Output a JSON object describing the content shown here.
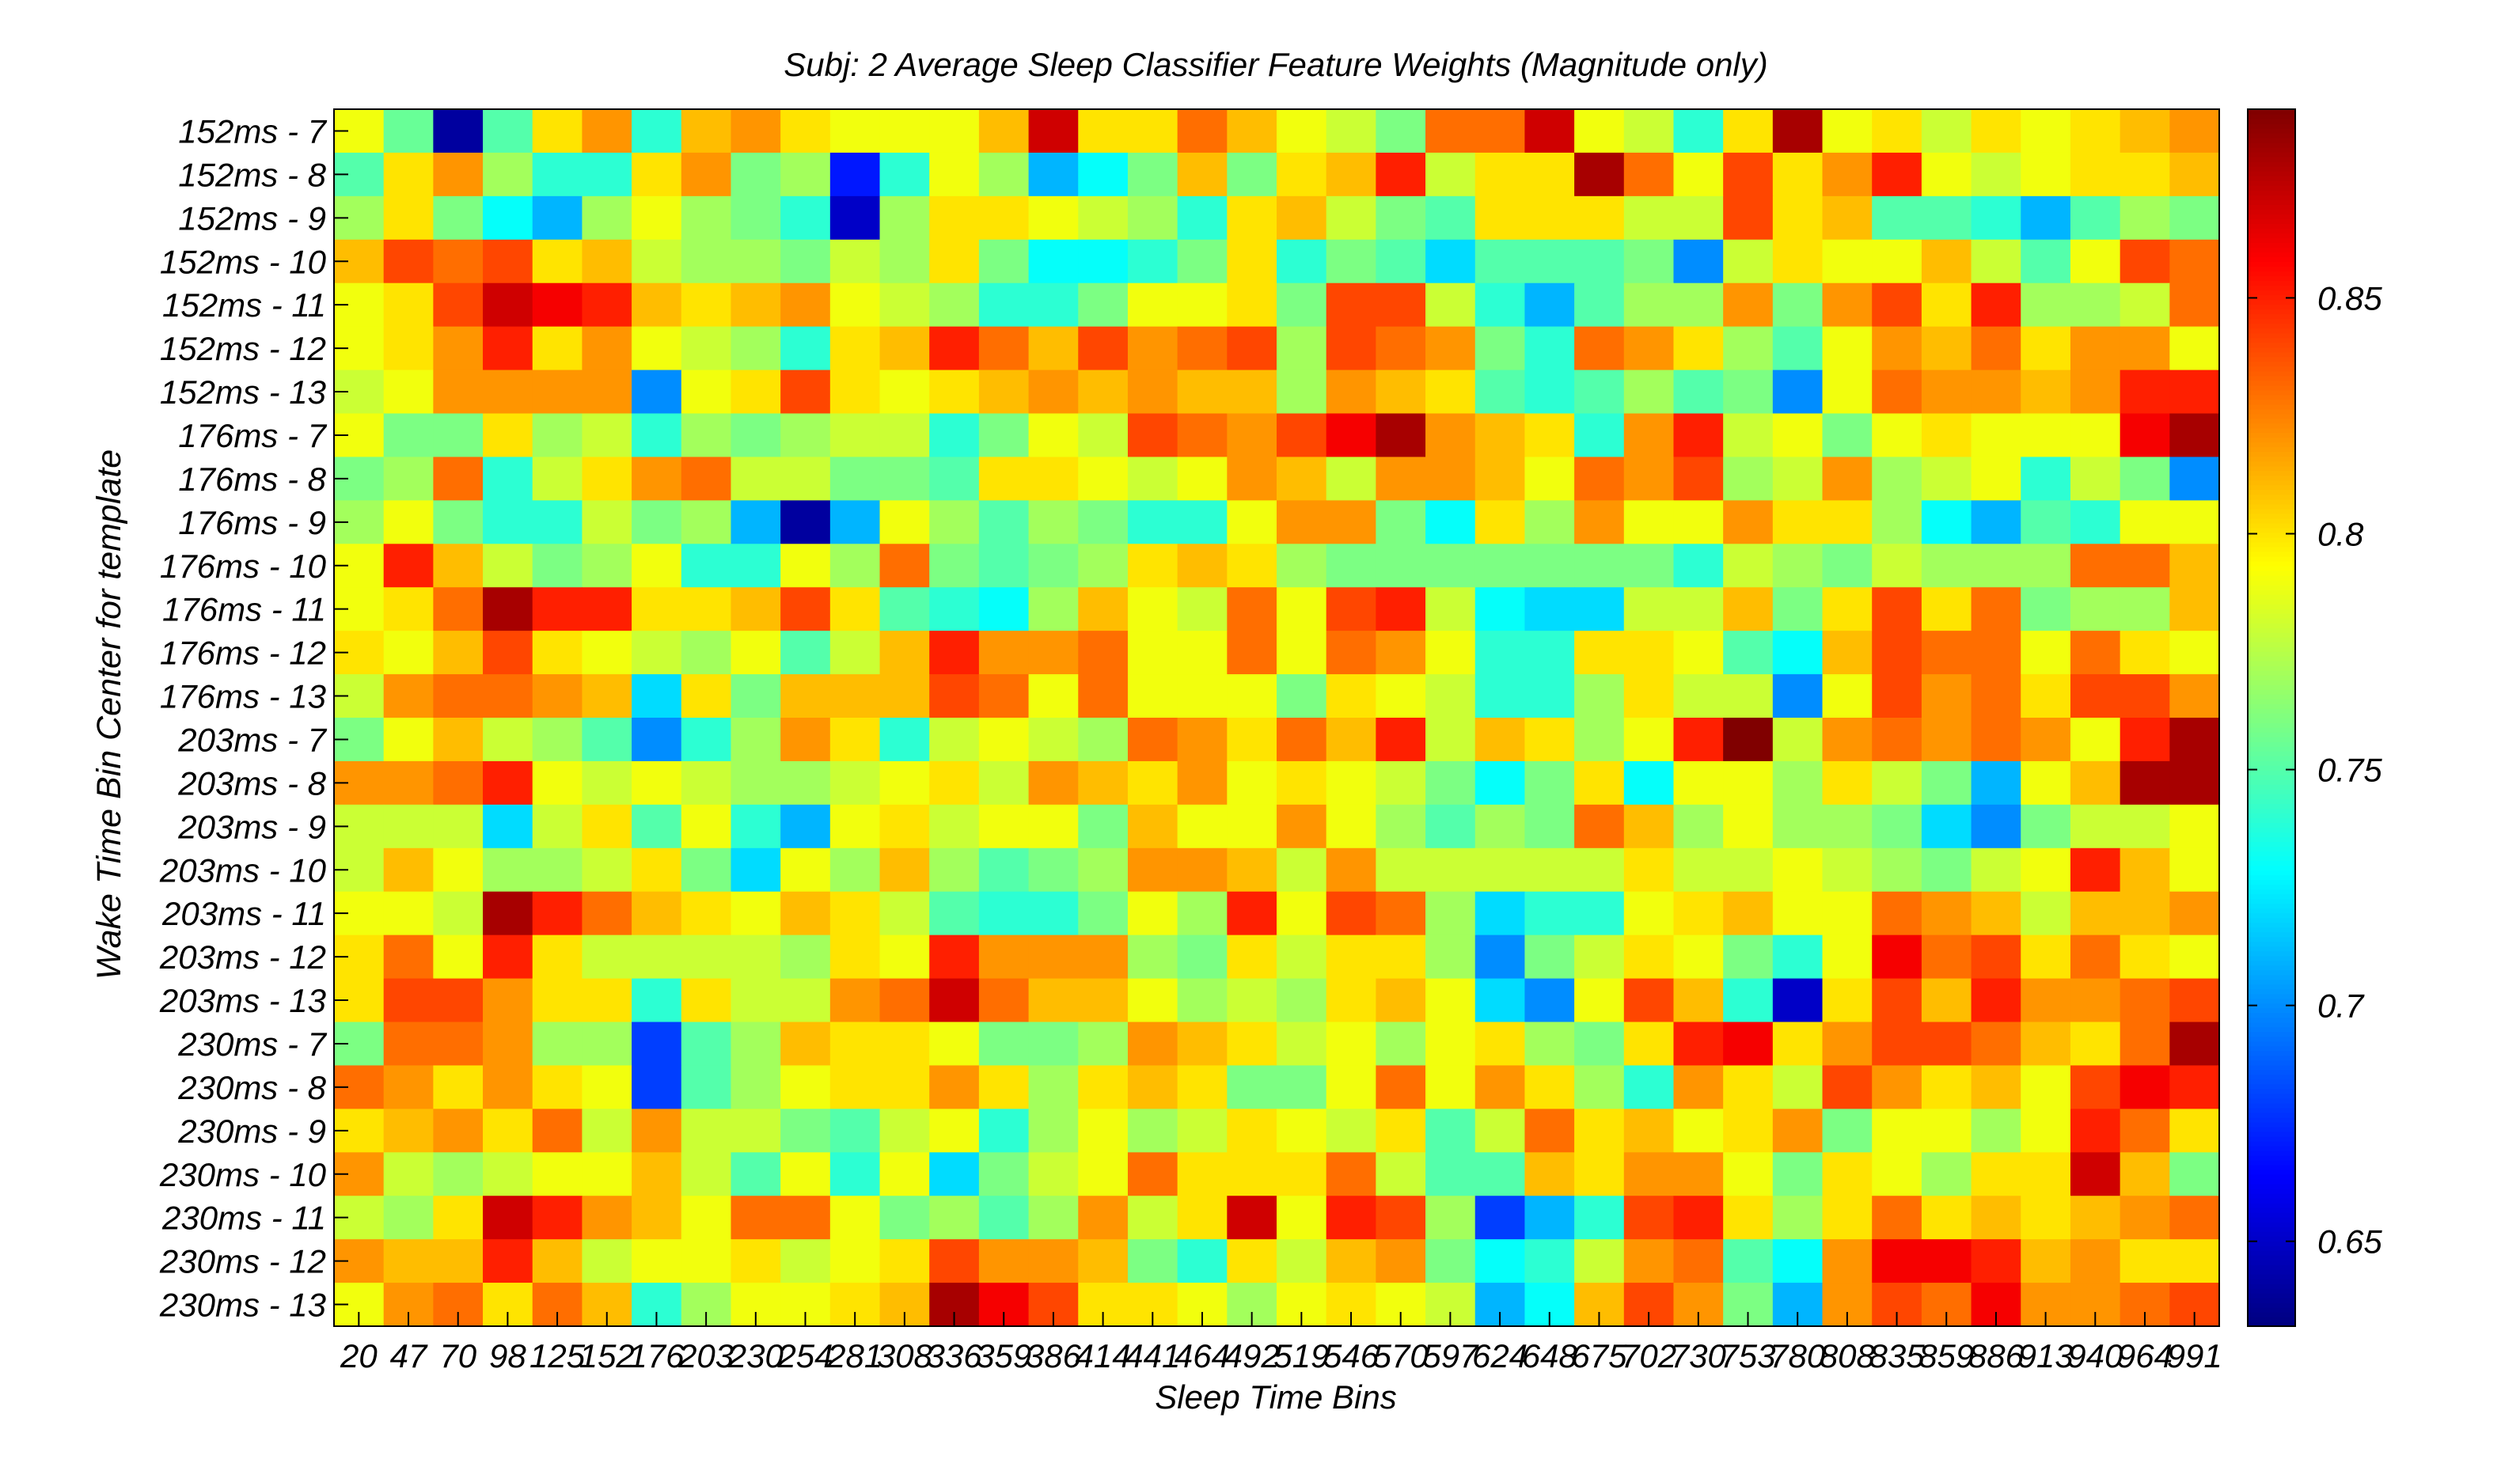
{
  "chart_data": {
    "type": "heatmap",
    "title": "Subj: 2 Average Sleep Classifier Feature Weights (Magnitude only)",
    "xlabel": "Sleep Time Bins",
    "ylabel": "Wake Time Bin Center for template",
    "x_tick_labels": [
      "20",
      "47",
      "70",
      "98",
      "125",
      "152",
      "176",
      "203",
      "230",
      "254",
      "281",
      "308",
      "336",
      "359",
      "386",
      "414",
      "441",
      "464",
      "492",
      "519",
      "546",
      "570",
      "597",
      "624",
      "648",
      "675",
      "702",
      "730",
      "753",
      "780",
      "808",
      "835",
      "859",
      "886",
      "913",
      "940",
      "964",
      "991"
    ],
    "y_tick_labels": [
      "152ms - 7",
      "152ms - 8",
      "152ms - 9",
      "152ms - 10",
      "152ms - 11",
      "152ms - 12",
      "152ms - 13",
      "176ms - 7",
      "176ms - 8",
      "176ms - 9",
      "176ms - 10",
      "176ms - 11",
      "176ms - 12",
      "176ms - 13",
      "203ms - 7",
      "203ms - 8",
      "203ms - 9",
      "203ms - 10",
      "203ms - 11",
      "203ms - 12",
      "203ms - 13",
      "230ms - 7",
      "230ms - 8",
      "230ms - 9",
      "230ms - 10",
      "230ms - 11",
      "230ms - 12",
      "230ms - 13"
    ],
    "n_cols": 38,
    "colormap": "jet",
    "clim": [
      0.632,
      0.89
    ],
    "colorbar_ticks": [
      0.65,
      0.7,
      0.75,
      0.8,
      0.85
    ],
    "colorbar_tick_labels": [
      "0.65",
      "0.7",
      "0.75",
      "0.8",
      "0.85"
    ],
    "values": [
      [
        0.79,
        0.755,
        0.64,
        0.75,
        0.8,
        0.82,
        0.74,
        0.81,
        0.82,
        0.8,
        0.79,
        0.79,
        0.79,
        0.81,
        0.87,
        0.8,
        0.8,
        0.83,
        0.81,
        0.79,
        0.78,
        0.76,
        0.83,
        0.83,
        0.87,
        0.79,
        0.78,
        0.74,
        0.8,
        0.88,
        0.79,
        0.8,
        0.78,
        0.8,
        0.79,
        0.8,
        0.81,
        0.82
      ],
      [
        0.75,
        0.8,
        0.82,
        0.77,
        0.74,
        0.74,
        0.8,
        0.82,
        0.76,
        0.77,
        0.67,
        0.74,
        0.79,
        0.77,
        0.71,
        0.73,
        0.76,
        0.81,
        0.76,
        0.8,
        0.81,
        0.85,
        0.78,
        0.8,
        0.8,
        0.88,
        0.83,
        0.79,
        0.84,
        0.8,
        0.82,
        0.85,
        0.79,
        0.78,
        0.79,
        0.8,
        0.8,
        0.81
      ],
      [
        0.77,
        0.8,
        0.76,
        0.73,
        0.71,
        0.77,
        0.79,
        0.77,
        0.76,
        0.74,
        0.65,
        0.77,
        0.8,
        0.8,
        0.79,
        0.78,
        0.77,
        0.74,
        0.8,
        0.81,
        0.78,
        0.76,
        0.75,
        0.8,
        0.8,
        0.8,
        0.78,
        0.78,
        0.84,
        0.8,
        0.81,
        0.75,
        0.75,
        0.74,
        0.71,
        0.75,
        0.77,
        0.76
      ],
      [
        0.81,
        0.84,
        0.83,
        0.84,
        0.8,
        0.81,
        0.78,
        0.77,
        0.77,
        0.76,
        0.78,
        0.77,
        0.8,
        0.76,
        0.73,
        0.73,
        0.74,
        0.76,
        0.8,
        0.74,
        0.76,
        0.75,
        0.72,
        0.75,
        0.75,
        0.75,
        0.76,
        0.7,
        0.78,
        0.8,
        0.79,
        0.79,
        0.81,
        0.78,
        0.75,
        0.79,
        0.84,
        0.83
      ],
      [
        0.79,
        0.8,
        0.84,
        0.87,
        0.86,
        0.85,
        0.81,
        0.8,
        0.81,
        0.82,
        0.79,
        0.78,
        0.77,
        0.74,
        0.74,
        0.76,
        0.79,
        0.79,
        0.8,
        0.76,
        0.84,
        0.84,
        0.78,
        0.74,
        0.71,
        0.75,
        0.77,
        0.77,
        0.82,
        0.76,
        0.82,
        0.84,
        0.8,
        0.85,
        0.77,
        0.77,
        0.78,
        0.83
      ],
      [
        0.79,
        0.8,
        0.82,
        0.85,
        0.8,
        0.82,
        0.79,
        0.78,
        0.77,
        0.74,
        0.8,
        0.81,
        0.85,
        0.83,
        0.81,
        0.84,
        0.82,
        0.83,
        0.84,
        0.77,
        0.84,
        0.83,
        0.82,
        0.76,
        0.74,
        0.83,
        0.82,
        0.8,
        0.77,
        0.75,
        0.79,
        0.82,
        0.81,
        0.83,
        0.8,
        0.82,
        0.82,
        0.79
      ],
      [
        0.78,
        0.79,
        0.82,
        0.82,
        0.82,
        0.82,
        0.7,
        0.79,
        0.8,
        0.84,
        0.8,
        0.79,
        0.8,
        0.81,
        0.82,
        0.81,
        0.82,
        0.81,
        0.81,
        0.77,
        0.82,
        0.81,
        0.8,
        0.75,
        0.74,
        0.75,
        0.77,
        0.75,
        0.76,
        0.7,
        0.79,
        0.83,
        0.82,
        0.82,
        0.81,
        0.82,
        0.85,
        0.85
      ],
      [
        0.79,
        0.76,
        0.76,
        0.8,
        0.77,
        0.78,
        0.74,
        0.77,
        0.76,
        0.77,
        0.78,
        0.78,
        0.74,
        0.76,
        0.79,
        0.78,
        0.84,
        0.83,
        0.82,
        0.84,
        0.86,
        0.88,
        0.82,
        0.81,
        0.8,
        0.74,
        0.82,
        0.85,
        0.78,
        0.79,
        0.76,
        0.79,
        0.8,
        0.79,
        0.79,
        0.79,
        0.86,
        0.88
      ],
      [
        0.76,
        0.77,
        0.83,
        0.74,
        0.78,
        0.8,
        0.82,
        0.83,
        0.78,
        0.78,
        0.76,
        0.76,
        0.75,
        0.8,
        0.8,
        0.79,
        0.78,
        0.79,
        0.82,
        0.81,
        0.78,
        0.82,
        0.82,
        0.81,
        0.79,
        0.83,
        0.82,
        0.84,
        0.77,
        0.78,
        0.82,
        0.77,
        0.78,
        0.79,
        0.74,
        0.78,
        0.76,
        0.7
      ],
      [
        0.77,
        0.79,
        0.76,
        0.74,
        0.74,
        0.78,
        0.76,
        0.77,
        0.71,
        0.64,
        0.71,
        0.79,
        0.77,
        0.75,
        0.77,
        0.76,
        0.74,
        0.74,
        0.79,
        0.82,
        0.82,
        0.76,
        0.73,
        0.8,
        0.77,
        0.82,
        0.79,
        0.79,
        0.82,
        0.8,
        0.8,
        0.77,
        0.73,
        0.71,
        0.75,
        0.74,
        0.79,
        0.79
      ],
      [
        0.79,
        0.85,
        0.81,
        0.78,
        0.76,
        0.77,
        0.79,
        0.74,
        0.74,
        0.79,
        0.77,
        0.83,
        0.76,
        0.75,
        0.76,
        0.77,
        0.8,
        0.81,
        0.8,
        0.77,
        0.76,
        0.76,
        0.76,
        0.76,
        0.76,
        0.76,
        0.76,
        0.74,
        0.78,
        0.77,
        0.76,
        0.78,
        0.77,
        0.77,
        0.77,
        0.83,
        0.83,
        0.81
      ],
      [
        0.79,
        0.8,
        0.83,
        0.88,
        0.85,
        0.85,
        0.8,
        0.8,
        0.81,
        0.84,
        0.8,
        0.75,
        0.74,
        0.73,
        0.77,
        0.81,
        0.79,
        0.78,
        0.83,
        0.79,
        0.84,
        0.85,
        0.78,
        0.73,
        0.72,
        0.72,
        0.78,
        0.78,
        0.81,
        0.76,
        0.8,
        0.84,
        0.8,
        0.83,
        0.76,
        0.77,
        0.77,
        0.81
      ],
      [
        0.8,
        0.79,
        0.81,
        0.84,
        0.8,
        0.79,
        0.78,
        0.77,
        0.79,
        0.75,
        0.78,
        0.81,
        0.85,
        0.82,
        0.82,
        0.83,
        0.79,
        0.79,
        0.83,
        0.79,
        0.83,
        0.82,
        0.79,
        0.74,
        0.74,
        0.8,
        0.8,
        0.79,
        0.75,
        0.73,
        0.81,
        0.84,
        0.83,
        0.83,
        0.79,
        0.83,
        0.8,
        0.79
      ],
      [
        0.78,
        0.82,
        0.83,
        0.83,
        0.82,
        0.81,
        0.72,
        0.8,
        0.76,
        0.81,
        0.81,
        0.81,
        0.84,
        0.83,
        0.79,
        0.83,
        0.79,
        0.79,
        0.79,
        0.76,
        0.8,
        0.79,
        0.78,
        0.74,
        0.74,
        0.77,
        0.8,
        0.78,
        0.78,
        0.7,
        0.79,
        0.84,
        0.82,
        0.83,
        0.8,
        0.84,
        0.84,
        0.82
      ],
      [
        0.76,
        0.79,
        0.81,
        0.78,
        0.77,
        0.75,
        0.7,
        0.74,
        0.77,
        0.82,
        0.8,
        0.74,
        0.78,
        0.79,
        0.78,
        0.77,
        0.83,
        0.82,
        0.8,
        0.83,
        0.81,
        0.85,
        0.78,
        0.81,
        0.8,
        0.77,
        0.79,
        0.85,
        0.89,
        0.78,
        0.82,
        0.83,
        0.82,
        0.83,
        0.82,
        0.79,
        0.85,
        0.88
      ],
      [
        0.82,
        0.82,
        0.83,
        0.85,
        0.79,
        0.78,
        0.79,
        0.78,
        0.77,
        0.77,
        0.78,
        0.79,
        0.8,
        0.78,
        0.82,
        0.81,
        0.8,
        0.82,
        0.79,
        0.8,
        0.79,
        0.78,
        0.76,
        0.73,
        0.76,
        0.8,
        0.73,
        0.79,
        0.79,
        0.77,
        0.8,
        0.78,
        0.76,
        0.71,
        0.79,
        0.81,
        0.88,
        0.88
      ],
      [
        0.78,
        0.78,
        0.78,
        0.72,
        0.78,
        0.8,
        0.75,
        0.79,
        0.74,
        0.71,
        0.79,
        0.8,
        0.78,
        0.79,
        0.79,
        0.76,
        0.81,
        0.79,
        0.79,
        0.82,
        0.79,
        0.77,
        0.75,
        0.77,
        0.76,
        0.83,
        0.81,
        0.77,
        0.79,
        0.77,
        0.77,
        0.76,
        0.72,
        0.7,
        0.76,
        0.78,
        0.78,
        0.79
      ],
      [
        0.78,
        0.81,
        0.79,
        0.77,
        0.77,
        0.78,
        0.8,
        0.76,
        0.72,
        0.79,
        0.77,
        0.81,
        0.77,
        0.75,
        0.76,
        0.77,
        0.82,
        0.82,
        0.81,
        0.78,
        0.82,
        0.78,
        0.78,
        0.78,
        0.78,
        0.78,
        0.8,
        0.78,
        0.78,
        0.79,
        0.78,
        0.77,
        0.76,
        0.78,
        0.79,
        0.85,
        0.81,
        0.79
      ],
      [
        0.79,
        0.79,
        0.78,
        0.88,
        0.85,
        0.83,
        0.81,
        0.8,
        0.79,
        0.81,
        0.8,
        0.78,
        0.75,
        0.74,
        0.74,
        0.76,
        0.79,
        0.77,
        0.85,
        0.79,
        0.84,
        0.83,
        0.77,
        0.72,
        0.74,
        0.74,
        0.79,
        0.8,
        0.81,
        0.79,
        0.79,
        0.83,
        0.82,
        0.81,
        0.78,
        0.81,
        0.81,
        0.82
      ],
      [
        0.8,
        0.83,
        0.79,
        0.85,
        0.8,
        0.78,
        0.78,
        0.78,
        0.78,
        0.77,
        0.8,
        0.79,
        0.85,
        0.82,
        0.82,
        0.82,
        0.77,
        0.76,
        0.8,
        0.78,
        0.8,
        0.8,
        0.77,
        0.7,
        0.76,
        0.78,
        0.8,
        0.79,
        0.76,
        0.74,
        0.79,
        0.86,
        0.83,
        0.84,
        0.8,
        0.83,
        0.8,
        0.79
      ],
      [
        0.8,
        0.84,
        0.84,
        0.82,
        0.8,
        0.8,
        0.74,
        0.8,
        0.78,
        0.78,
        0.82,
        0.83,
        0.87,
        0.83,
        0.81,
        0.81,
        0.79,
        0.77,
        0.78,
        0.77,
        0.8,
        0.81,
        0.79,
        0.72,
        0.7,
        0.79,
        0.84,
        0.81,
        0.74,
        0.65,
        0.8,
        0.84,
        0.81,
        0.85,
        0.82,
        0.82,
        0.83,
        0.84
      ],
      [
        0.76,
        0.83,
        0.83,
        0.82,
        0.77,
        0.77,
        0.68,
        0.75,
        0.77,
        0.81,
        0.8,
        0.8,
        0.79,
        0.76,
        0.76,
        0.77,
        0.82,
        0.81,
        0.8,
        0.78,
        0.79,
        0.77,
        0.79,
        0.8,
        0.77,
        0.76,
        0.8,
        0.85,
        0.86,
        0.8,
        0.82,
        0.84,
        0.84,
        0.83,
        0.81,
        0.8,
        0.83,
        0.88
      ],
      [
        0.83,
        0.82,
        0.8,
        0.82,
        0.8,
        0.79,
        0.68,
        0.75,
        0.77,
        0.79,
        0.8,
        0.8,
        0.82,
        0.8,
        0.77,
        0.8,
        0.81,
        0.8,
        0.76,
        0.76,
        0.79,
        0.83,
        0.79,
        0.82,
        0.8,
        0.77,
        0.74,
        0.82,
        0.8,
        0.78,
        0.84,
        0.82,
        0.8,
        0.81,
        0.79,
        0.84,
        0.86,
        0.85
      ],
      [
        0.8,
        0.81,
        0.82,
        0.8,
        0.83,
        0.78,
        0.82,
        0.78,
        0.78,
        0.76,
        0.75,
        0.78,
        0.79,
        0.74,
        0.77,
        0.79,
        0.77,
        0.78,
        0.8,
        0.79,
        0.78,
        0.8,
        0.75,
        0.78,
        0.83,
        0.8,
        0.81,
        0.79,
        0.8,
        0.82,
        0.76,
        0.79,
        0.79,
        0.77,
        0.79,
        0.85,
        0.83,
        0.8
      ],
      [
        0.82,
        0.78,
        0.77,
        0.78,
        0.79,
        0.79,
        0.81,
        0.78,
        0.75,
        0.79,
        0.74,
        0.79,
        0.72,
        0.76,
        0.78,
        0.79,
        0.83,
        0.8,
        0.8,
        0.8,
        0.83,
        0.78,
        0.75,
        0.75,
        0.81,
        0.8,
        0.82,
        0.82,
        0.79,
        0.76,
        0.8,
        0.79,
        0.77,
        0.8,
        0.8,
        0.87,
        0.81,
        0.76
      ],
      [
        0.78,
        0.77,
        0.8,
        0.87,
        0.85,
        0.82,
        0.81,
        0.79,
        0.83,
        0.83,
        0.79,
        0.76,
        0.77,
        0.75,
        0.77,
        0.82,
        0.78,
        0.8,
        0.87,
        0.79,
        0.85,
        0.84,
        0.77,
        0.68,
        0.71,
        0.74,
        0.84,
        0.85,
        0.8,
        0.77,
        0.8,
        0.83,
        0.8,
        0.81,
        0.8,
        0.81,
        0.82,
        0.83
      ],
      [
        0.82,
        0.81,
        0.81,
        0.85,
        0.81,
        0.78,
        0.79,
        0.79,
        0.8,
        0.78,
        0.79,
        0.8,
        0.84,
        0.82,
        0.82,
        0.81,
        0.76,
        0.74,
        0.8,
        0.78,
        0.81,
        0.82,
        0.76,
        0.73,
        0.74,
        0.78,
        0.82,
        0.83,
        0.75,
        0.73,
        0.82,
        0.86,
        0.86,
        0.85,
        0.81,
        0.82,
        0.8,
        0.8
      ],
      [
        0.79,
        0.82,
        0.83,
        0.8,
        0.83,
        0.81,
        0.74,
        0.77,
        0.79,
        0.79,
        0.8,
        0.81,
        0.88,
        0.86,
        0.84,
        0.8,
        0.8,
        0.79,
        0.77,
        0.79,
        0.8,
        0.79,
        0.78,
        0.71,
        0.73,
        0.81,
        0.84,
        0.82,
        0.76,
        0.71,
        0.82,
        0.84,
        0.83,
        0.86,
        0.82,
        0.82,
        0.83,
        0.84
      ]
    ]
  }
}
